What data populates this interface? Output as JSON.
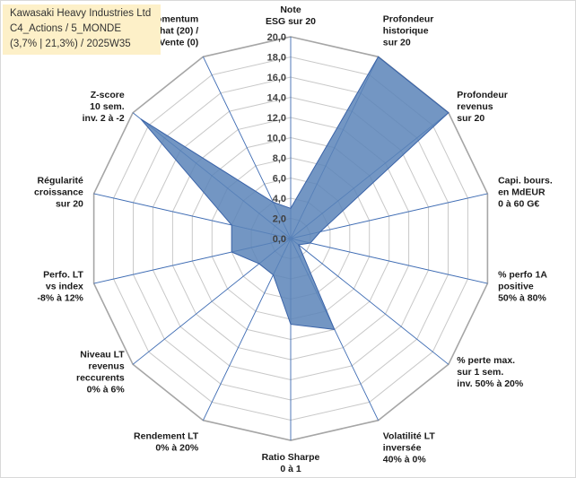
{
  "title_box": {
    "line1": "Kawasaki Heavy Industries Ltd",
    "line2": "C4_Actions / 5_MONDE",
    "line3": "(3,7% | 21,3%) / 2025W35",
    "background": "#fdf0c8"
  },
  "chart_data": {
    "type": "radar",
    "rmin": 0,
    "rmax": 20,
    "ticks": [
      "0,0",
      "2,0",
      "4,0",
      "6,0",
      "8,0",
      "10,0",
      "12,0",
      "14,0",
      "16,0",
      "18,0",
      "20,0"
    ],
    "grid": true,
    "fill_color": "#5b84b8",
    "line_color": "#3a63a8",
    "axes": [
      {
        "label": [
          "Note",
          "ESG sur 20"
        ],
        "value": 3.0
      },
      {
        "label": [
          "Profondeur",
          "historique",
          "sur 20"
        ],
        "value": 20.0
      },
      {
        "label": [
          "Profondeur",
          "revenus",
          "sur 20"
        ],
        "value": 20.0
      },
      {
        "label": [
          "Capi. bours.",
          "en MdEUR",
          "0 à 60 G€"
        ],
        "value": 3.0
      },
      {
        "label": [
          "% perfo 1A",
          "positive",
          "50% à 80%"
        ],
        "value": 2.0
      },
      {
        "label": [
          "% perte max.",
          "sur 1 sem.",
          "inv. 50% à 20%"
        ],
        "value": 1.0
      },
      {
        "label": [
          "Volatilité LT",
          "inversée",
          "40% à 0%"
        ],
        "value": 10.0
      },
      {
        "label": [
          "Ratio Sharpe",
          "0 à 1"
        ],
        "value": 8.5
      },
      {
        "label": [
          "Rendement LT",
          "0% à 20%"
        ],
        "value": 4.0
      },
      {
        "label": [
          "Niveau LT",
          "revenus",
          "reccurents",
          "0% à 6%"
        ],
        "value": 4.0
      },
      {
        "label": [
          "Perfo. LT",
          "vs index",
          "-8% à 12%"
        ],
        "value": 6.0
      },
      {
        "label": [
          "Régularité",
          "croissance",
          "sur 20"
        ],
        "value": 6.0
      },
      {
        "label": [
          "Z-score",
          "10 sem.",
          "inv. 2 à -2"
        ],
        "value": 19.0
      },
      {
        "label": [
          "Momentum",
          "Achat (20) /",
          "Vente (0)"
        ],
        "value": 4.0
      }
    ]
  }
}
